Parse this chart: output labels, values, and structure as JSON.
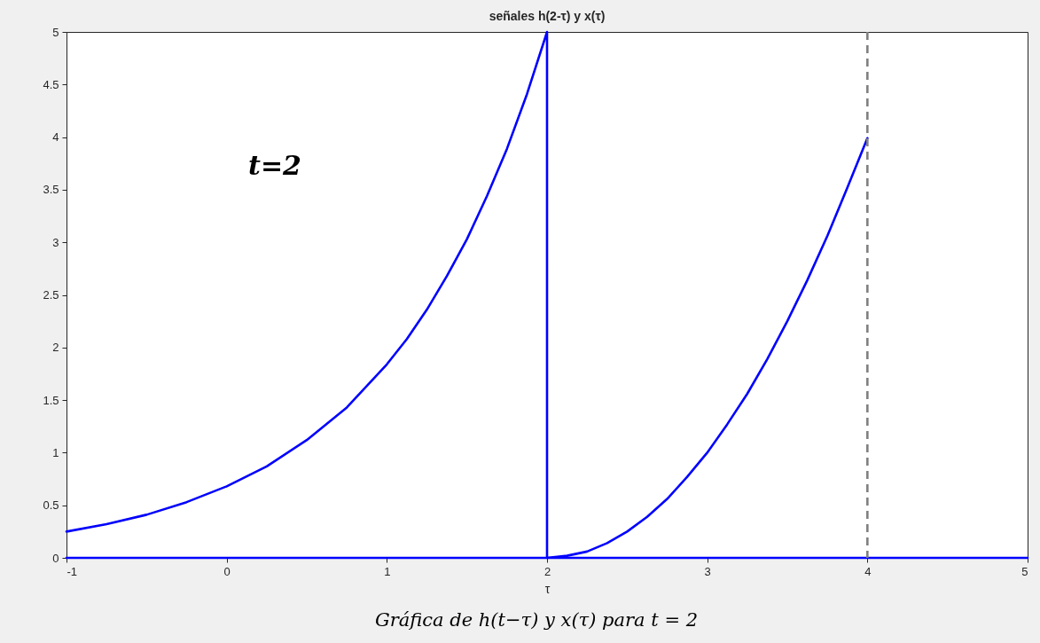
{
  "chart_data": {
    "type": "line",
    "title": "señales h(2-τ) y  x(τ)",
    "xlabel": "τ",
    "xlim": [
      -1,
      5
    ],
    "ylim": [
      0,
      5
    ],
    "xticks": [
      -1,
      0,
      1,
      2,
      3,
      4,
      5
    ],
    "yticks": [
      0,
      0.5,
      1,
      1.5,
      2,
      2.5,
      3,
      3.5,
      4,
      4.5,
      5
    ],
    "series": [
      {
        "color": "#0000ff",
        "x": [
          -1,
          -0.75,
          -0.5,
          -0.25,
          0,
          0.25,
          0.5,
          0.75,
          1,
          1.125,
          1.25,
          1.375,
          1.5,
          1.625,
          1.75,
          1.875,
          2,
          2,
          5
        ],
        "values": [
          0.25,
          0.32,
          0.41,
          0.53,
          0.68,
          0.87,
          1.12,
          1.43,
          1.84,
          2.08,
          2.36,
          2.68,
          3.03,
          3.44,
          3.89,
          4.41,
          5,
          0,
          0
        ]
      },
      {
        "color": "#0000ff",
        "x": [
          -1,
          2,
          2.125,
          2.25,
          2.375,
          2.5,
          2.625,
          2.75,
          2.875,
          3,
          3.125,
          3.25,
          3.375,
          3.5,
          3.625,
          3.75,
          3.875,
          4
        ],
        "values": [
          0,
          0,
          0.02,
          0.06,
          0.14,
          0.25,
          0.39,
          0.56,
          0.77,
          1,
          1.27,
          1.56,
          1.89,
          2.25,
          2.64,
          3.06,
          3.52,
          3.99
        ]
      }
    ],
    "ref_lines": [
      {
        "axis": "x",
        "value": 4,
        "color": "#808080",
        "line_style": "dashed"
      }
    ],
    "annotations": [
      "t=2",
      "Gráfica de h(t−τ) y x(τ)  para t = 2"
    ]
  }
}
